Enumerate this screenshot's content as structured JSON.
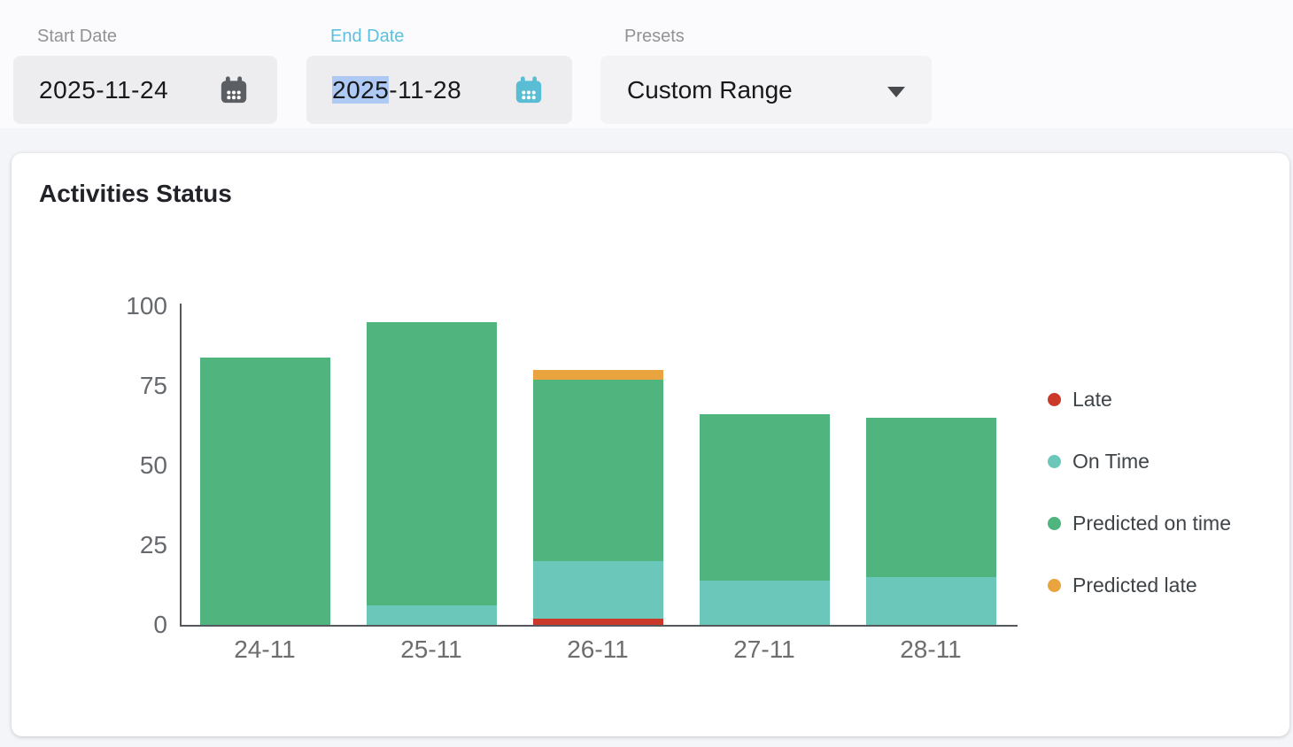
{
  "header": {
    "start_date": {
      "label": "Start Date",
      "value": "2025-11-24"
    },
    "end_date": {
      "label": "End Date",
      "value_selected": "2025",
      "value_rest": "-11-28"
    },
    "presets": {
      "label": "Presets",
      "value": "Custom Range"
    }
  },
  "card": {
    "title": "Activities Status"
  },
  "chart_data": {
    "type": "bar",
    "stacked": true,
    "title": "Activities Status",
    "categories": [
      "24-11",
      "25-11",
      "26-11",
      "27-11",
      "28-11"
    ],
    "series": [
      {
        "name": "Late",
        "color": "#cb392b",
        "values": [
          0,
          0,
          2,
          0,
          0
        ]
      },
      {
        "name": "On Time",
        "color": "#6cc7bb",
        "values": [
          0,
          6,
          18,
          14,
          15
        ]
      },
      {
        "name": "Predicted on time",
        "color": "#4fb47e",
        "values": [
          84,
          89,
          57,
          52,
          50
        ]
      },
      {
        "name": "Predicted late",
        "color": "#e9a33f",
        "values": [
          0,
          0,
          3,
          0,
          0
        ]
      }
    ],
    "totals": [
      84,
      95,
      80,
      66,
      65
    ],
    "xlabel": "",
    "ylabel": "",
    "ylim": [
      0,
      100
    ],
    "yticks": [
      0,
      25,
      50,
      75,
      100
    ],
    "legend_position": "right",
    "grid": false
  },
  "colors": {
    "accent_teal": "#59bdd4",
    "end_date_label": "#5cc0da",
    "selection": "#aec9f4",
    "icon_gray": "#5b5f63",
    "axis": "#55585c",
    "page_bg": "#f4f5f8",
    "header_bg": "#fbfbfd",
    "input_bg": "#ededef",
    "legend_text": "#3f4449"
  }
}
